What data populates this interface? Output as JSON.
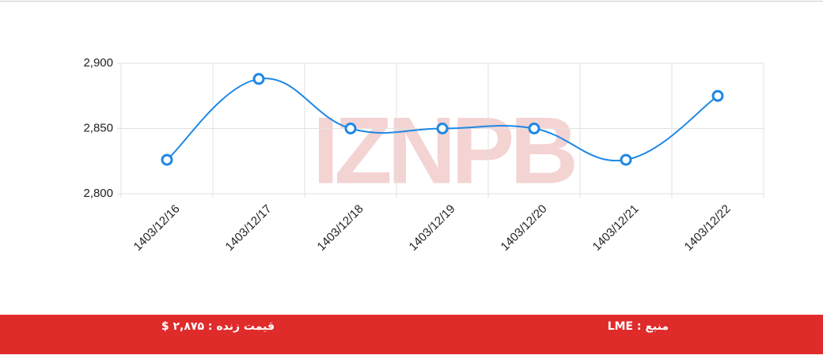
{
  "chart_data": {
    "type": "line",
    "watermark": "IZNPB",
    "categories": [
      "1403/12/16",
      "1403/12/17",
      "1403/12/18",
      "1403/12/19",
      "1403/12/20",
      "1403/12/21",
      "1403/12/22"
    ],
    "series": [
      {
        "color": "#1e88e5",
        "values": [
          2826,
          2888,
          2850,
          2850,
          2850,
          2826,
          2875
        ]
      }
    ],
    "ylim": [
      2800,
      2900
    ],
    "yticks": [
      {
        "value": 2800,
        "label": "2,800"
      },
      {
        "value": 2850,
        "label": "2,850"
      },
      {
        "value": 2900,
        "label": "2,900"
      }
    ],
    "grid": true
  },
  "footer": {
    "source": "منبع : LME",
    "live_price": "قیمت زنده : ۲,۸۷۵ $"
  }
}
